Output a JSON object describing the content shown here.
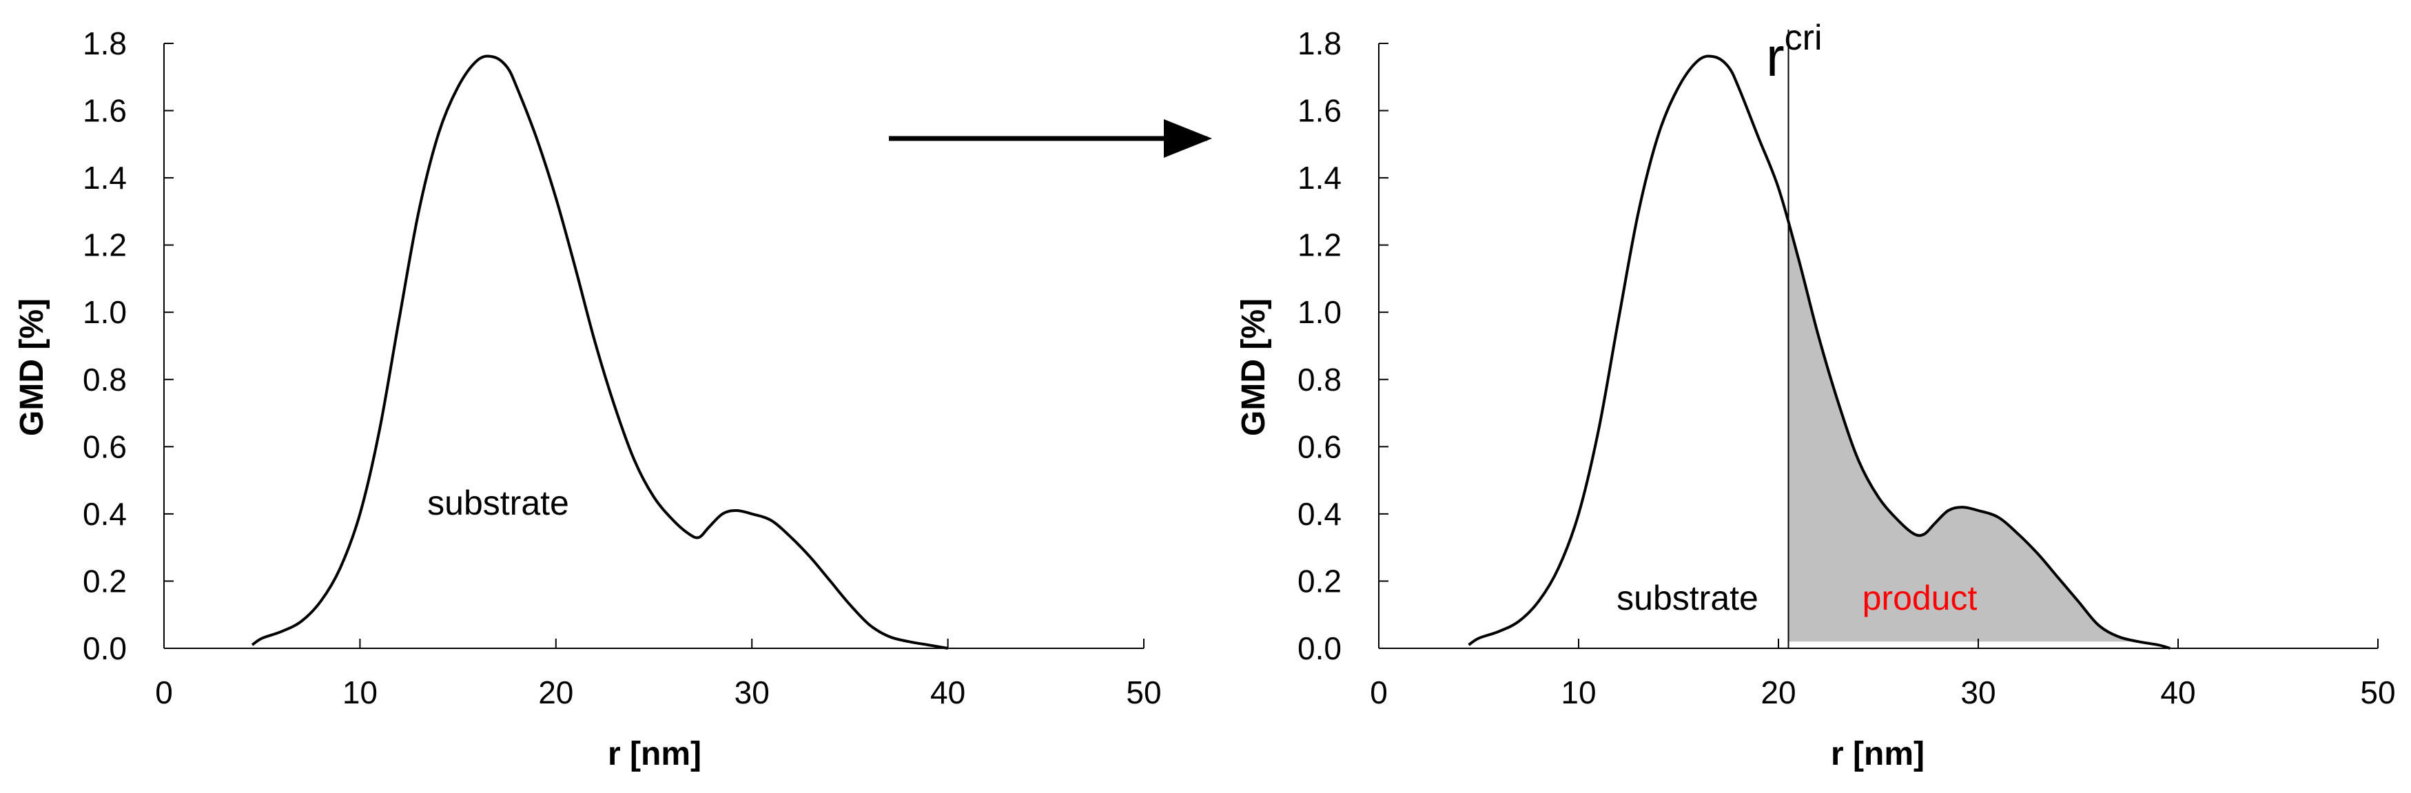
{
  "colors": {
    "curve": "#000000",
    "shade": "#c0c0c0",
    "product_label": "#ff0000"
  },
  "arrow": {
    "direction": "right"
  },
  "chart_data": [
    {
      "type": "line",
      "xlabel": "r [nm]",
      "ylabel": "GMD [%]",
      "xlim": [
        0,
        50
      ],
      "ylim": [
        0,
        1.8
      ],
      "xticks": [
        0,
        10,
        20,
        30,
        40,
        50
      ],
      "yticks": [
        0.0,
        0.2,
        0.4,
        0.6,
        0.8,
        1.0,
        1.2,
        1.4,
        1.6,
        1.8
      ],
      "x_tick_labels": [
        "0",
        "10",
        "20",
        "30",
        "40",
        "50"
      ],
      "y_tick_labels": [
        "0.0",
        "0.2",
        "0.4",
        "0.6",
        "0.8",
        "1.0",
        "1.2",
        "1.4",
        "1.6",
        "1.8"
      ],
      "grid": false,
      "series": [
        {
          "x": [
            4.5,
            5.0,
            6.0,
            7.0,
            8.0,
            9.0,
            10.0,
            11.0,
            12.0,
            13.0,
            14.0,
            15.0,
            16.0,
            16.8,
            17.5,
            18.0,
            19.0,
            20.0,
            21.0,
            22.0,
            23.0,
            24.0,
            25.0,
            26.0,
            26.8,
            27.3,
            27.8,
            28.5,
            29.2,
            30.0,
            31.0,
            32.0,
            33.0,
            34.0,
            35.0,
            36.0,
            37.0,
            38.0,
            39.0,
            40.0
          ],
          "y": [
            0.01,
            0.03,
            0.05,
            0.08,
            0.14,
            0.24,
            0.4,
            0.65,
            0.98,
            1.3,
            1.53,
            1.67,
            1.75,
            1.76,
            1.73,
            1.67,
            1.52,
            1.34,
            1.13,
            0.91,
            0.72,
            0.56,
            0.45,
            0.38,
            0.34,
            0.33,
            0.36,
            0.4,
            0.41,
            0.4,
            0.38,
            0.33,
            0.27,
            0.2,
            0.13,
            0.07,
            0.035,
            0.02,
            0.01,
            0.0
          ]
        }
      ],
      "annotations": [
        {
          "text": "substrate",
          "x": 17,
          "y": 0.42
        }
      ]
    },
    {
      "type": "area",
      "xlabel": "r [nm]",
      "ylabel": "GMD [%]",
      "xlim": [
        0,
        50
      ],
      "ylim": [
        0,
        1.8
      ],
      "xticks": [
        0,
        10,
        20,
        30,
        40,
        50
      ],
      "yticks": [
        0.0,
        0.2,
        0.4,
        0.6,
        0.8,
        1.0,
        1.2,
        1.4,
        1.6,
        1.8
      ],
      "x_tick_labels": [
        "0",
        "10",
        "20",
        "30",
        "40",
        "50"
      ],
      "y_tick_labels": [
        "0.0",
        "0.2",
        "0.4",
        "0.6",
        "0.8",
        "1.0",
        "1.2",
        "1.4",
        "1.6",
        "1.8"
      ],
      "grid": false,
      "series": [
        {
          "x": [
            4.5,
            5.0,
            6.0,
            7.0,
            8.0,
            9.0,
            10.0,
            11.0,
            12.0,
            13.0,
            14.0,
            15.0,
            16.0,
            16.8,
            17.5,
            18.0,
            19.0,
            20.0,
            21.0,
            22.0,
            23.0,
            24.0,
            25.0,
            26.0,
            26.8,
            27.3,
            27.8,
            28.5,
            29.2,
            30.0,
            31.0,
            32.0,
            33.0,
            34.0,
            35.0,
            36.0,
            37.0,
            38.0,
            39.0,
            39.6
          ],
          "y": [
            0.01,
            0.03,
            0.05,
            0.08,
            0.14,
            0.24,
            0.4,
            0.65,
            0.98,
            1.3,
            1.53,
            1.67,
            1.75,
            1.76,
            1.73,
            1.67,
            1.52,
            1.37,
            1.16,
            0.93,
            0.73,
            0.56,
            0.45,
            0.38,
            0.34,
            0.34,
            0.37,
            0.41,
            0.42,
            0.41,
            0.39,
            0.34,
            0.28,
            0.21,
            0.14,
            0.07,
            0.035,
            0.02,
            0.01,
            0.0
          ]
        }
      ],
      "cutoff": {
        "label_base": "r",
        "label_sup": "cri",
        "x": 20.5
      },
      "shaded_region": {
        "from_x": 20.5,
        "to_x": 39.6,
        "baseline": 0.02
      },
      "annotations": [
        {
          "text": "substrate",
          "x": 15.5,
          "y": 0.15
        },
        {
          "text": "product",
          "x": 27,
          "y": 0.15,
          "color": "#ff0000"
        }
      ]
    }
  ]
}
